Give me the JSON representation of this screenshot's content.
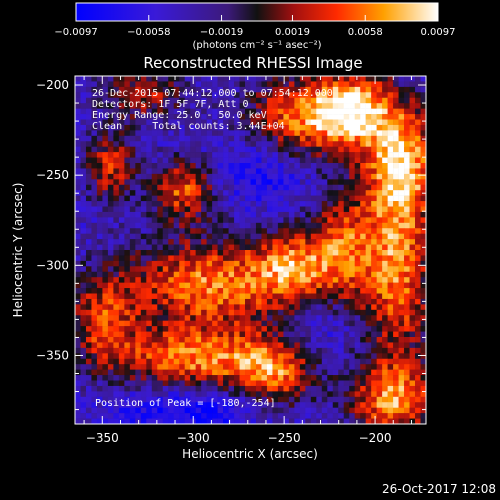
{
  "chart_data": {
    "type": "heatmap",
    "title": "Reconstructed RHESSI Image",
    "xlabel": "Heliocentric X (arcsec)",
    "ylabel": "Heliocentric Y (arcsec)",
    "xlim": [
      -365,
      -172
    ],
    "ylim": [
      -388,
      -195
    ],
    "x_ticks": [
      -350,
      -300,
      -250,
      -200
    ],
    "y_ticks": [
      -200,
      -250,
      -300,
      -350
    ],
    "colorbar": {
      "range": [
        -0.0097,
        0.0097
      ],
      "ticks": [
        "-0.0097",
        "-0.0058",
        "-0.0019",
        "0.0019",
        "0.0058",
        "0.0097"
      ],
      "unit_label": "(photons cm⁻² s⁻¹ asec⁻²)"
    },
    "annotations": [
      "26-Dec-2015 07:44:12.000 to 07:54:12.000",
      "Detectors: 1F 5F 7F, Att 0",
      "Energy Range: 25.0 - 50.0 keV",
      "Clean     Total counts: 3.44E+04"
    ],
    "peak_label": "Position of Peak = [-180,-254]",
    "timestamp": "26-Oct-2017 12:08",
    "blobs": [
      {
        "x": -240,
        "y": -218,
        "sx": 22,
        "sy": 16,
        "amp": 0.0088
      },
      {
        "x": -212,
        "y": -213,
        "sx": 14,
        "sy": 14,
        "amp": 0.0094
      },
      {
        "x": -185,
        "y": -240,
        "sx": 14,
        "sy": 22,
        "amp": 0.009
      },
      {
        "x": -305,
        "y": -258,
        "sx": 12,
        "sy": 12,
        "amp": 0.0078
      },
      {
        "x": -345,
        "y": -245,
        "sx": 10,
        "sy": 14,
        "amp": 0.0065
      },
      {
        "x": -290,
        "y": -310,
        "sx": 32,
        "sy": 18,
        "amp": 0.0092
      },
      {
        "x": -245,
        "y": -300,
        "sx": 14,
        "sy": 14,
        "amp": 0.0072
      },
      {
        "x": -218,
        "y": -290,
        "sx": 12,
        "sy": 22,
        "amp": 0.007
      },
      {
        "x": -300,
        "y": -352,
        "sx": 30,
        "sy": 12,
        "amp": 0.0088
      },
      {
        "x": -255,
        "y": -360,
        "sx": 16,
        "sy": 14,
        "amp": 0.0074
      },
      {
        "x": -188,
        "y": -300,
        "sx": 14,
        "sy": 40,
        "amp": 0.009
      },
      {
        "x": -190,
        "y": -375,
        "sx": 18,
        "sy": 14,
        "amp": 0.0085
      },
      {
        "x": -350,
        "y": -330,
        "sx": 14,
        "sy": 18,
        "amp": 0.0062
      },
      {
        "x": -328,
        "y": -205,
        "sx": 16,
        "sy": 10,
        "amp": 0.0058
      },
      {
        "x": -262,
        "y": -248,
        "sx": 18,
        "sy": 14,
        "amp": -0.005
      },
      {
        "x": -300,
        "y": -380,
        "sx": 30,
        "sy": 10,
        "amp": -0.006
      },
      {
        "x": -230,
        "y": -335,
        "sx": 14,
        "sy": 12,
        "amp": -0.004
      }
    ]
  }
}
